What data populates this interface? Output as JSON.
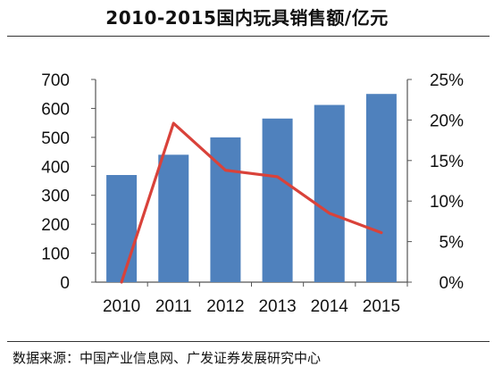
{
  "title": "2010-2015国内玩具销售额/亿元",
  "source": "数据来源：中国产业信息网、广发证券发展研究中心",
  "colors": {
    "bar": "#4F81BD",
    "line": "#D9423A",
    "axis": "#555555"
  },
  "chart_data": {
    "type": "bar",
    "title": "2010-2015国内玩具销售额/亿元",
    "categories": [
      "2010",
      "2011",
      "2012",
      "2013",
      "2014",
      "2015"
    ],
    "series": [
      {
        "type": "bar",
        "axis": "left",
        "values": [
          370,
          440,
          500,
          565,
          612,
          650
        ]
      },
      {
        "type": "line",
        "axis": "right",
        "values": [
          0,
          19.6,
          13.8,
          13.0,
          8.5,
          6.1
        ]
      }
    ],
    "y_left": {
      "min": 0,
      "max": 700,
      "step": 100,
      "ticks": [
        "0",
        "100",
        "200",
        "300",
        "400",
        "500",
        "600",
        "700"
      ]
    },
    "y_right": {
      "min": 0,
      "max": 25,
      "step": 5,
      "ticks": [
        "0%",
        "5%",
        "10%",
        "15%",
        "20%",
        "25%"
      ]
    },
    "grid": false,
    "legend": "none"
  }
}
